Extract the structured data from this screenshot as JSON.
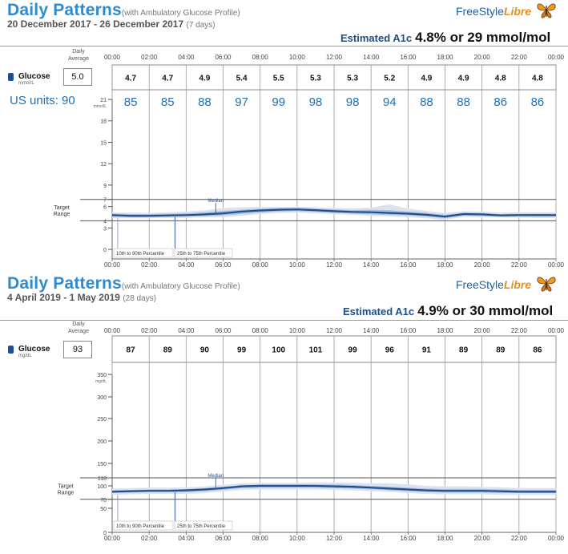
{
  "reports": [
    {
      "title": "Daily Patterns",
      "subtitle": "(with Ambulatory Glucose Profile)",
      "date_range": "20 December 2017 - 26 December 2017",
      "days": "(7 days)",
      "logo": {
        "text1": "FreeStyle",
        "text2": "Libre"
      },
      "a1c_label": "Estimated A1c",
      "a1c_value": "4.8% or 29 mmol/mol",
      "daily_average_label": [
        "Daily",
        "Average"
      ],
      "glucose_label": "Glucose",
      "glucose_unit": "mmol/L",
      "daily_average_value": "5.0",
      "us_units_label": "US units: 90"
    },
    {
      "title": "Daily Patterns",
      "subtitle": "(with Ambulatory Glucose Profile)",
      "date_range": "4 April 2019 - 1 May 2019",
      "days": "(28 days)",
      "logo": {
        "text1": "FreeStyle",
        "text2": "Libre"
      },
      "a1c_label": "Estimated A1c",
      "a1c_value": "4.9% or 30 mmol/mol",
      "daily_average_label": [
        "Daily",
        "Average"
      ],
      "glucose_label": "Glucose",
      "glucose_unit": "mg/dL",
      "daily_average_value": "93"
    }
  ],
  "colors": {
    "title": "#2e8bd0",
    "median": "#1f4f8c",
    "band_outer": "#dbe3f0",
    "band_inner": "#aebfdc",
    "us_units": "#1f6fb5"
  },
  "chart_data": [
    {
      "type": "area",
      "x_ticks": [
        "00:00",
        "02:00",
        "04:00",
        "06:00",
        "08:00",
        "10:00",
        "12:00",
        "14:00",
        "16:00",
        "18:00",
        "20:00",
        "22:00",
        "00:00"
      ],
      "hourly_averages": [
        "4.7",
        "4.7",
        "4.9",
        "5.4",
        "5.5",
        "5.3",
        "5.3",
        "5.2",
        "4.9",
        "4.9",
        "4.8",
        "4.8"
      ],
      "hourly_averages_us": [
        "85",
        "85",
        "88",
        "97",
        "99",
        "98",
        "98",
        "94",
        "88",
        "88",
        "86",
        "86"
      ],
      "y_ticks": [
        0,
        3,
        4,
        6,
        7,
        9,
        12,
        15,
        18,
        21
      ],
      "y_unit": "mmol/L",
      "ylim": [
        0,
        21
      ],
      "target_range": [
        4,
        7
      ],
      "target_label": [
        "Target",
        "Range"
      ],
      "median_label": "Median",
      "legend": [
        "10th to 90th Percentile",
        "25th to 75th Percentile"
      ],
      "x_hours": [
        0,
        1,
        2,
        3,
        4,
        5,
        6,
        7,
        8,
        9,
        10,
        11,
        12,
        13,
        14,
        15,
        16,
        17,
        18,
        19,
        20,
        21,
        22,
        23,
        24
      ],
      "median": [
        4.8,
        4.7,
        4.7,
        4.75,
        4.8,
        4.9,
        5.05,
        5.3,
        5.45,
        5.55,
        5.6,
        5.5,
        5.35,
        5.25,
        5.2,
        5.1,
        5.0,
        4.85,
        4.6,
        4.95,
        4.9,
        4.75,
        4.8,
        4.8,
        4.8
      ],
      "p25": [
        4.55,
        4.5,
        4.5,
        4.55,
        4.6,
        4.65,
        4.75,
        4.95,
        5.15,
        5.3,
        5.35,
        5.25,
        5.1,
        5.0,
        4.9,
        4.8,
        4.75,
        4.6,
        4.35,
        4.75,
        4.7,
        4.6,
        4.6,
        4.6,
        4.6
      ],
      "p75": [
        5.0,
        4.95,
        4.95,
        5.0,
        5.05,
        5.2,
        5.4,
        5.55,
        5.7,
        5.8,
        5.8,
        5.7,
        5.6,
        5.5,
        5.55,
        5.5,
        5.3,
        5.1,
        4.85,
        5.15,
        5.1,
        4.95,
        5.0,
        5.0,
        5.0
      ],
      "p10": [
        4.35,
        4.35,
        4.35,
        4.4,
        4.4,
        4.5,
        4.5,
        4.7,
        4.95,
        5.1,
        5.15,
        5.05,
        4.95,
        4.85,
        4.7,
        4.6,
        4.5,
        4.35,
        4.15,
        4.55,
        4.5,
        4.45,
        4.45,
        4.4,
        4.4
      ],
      "p90": [
        5.2,
        5.15,
        5.1,
        5.2,
        5.3,
        5.45,
        5.8,
        5.9,
        5.95,
        5.95,
        6.0,
        5.9,
        5.8,
        5.75,
        5.85,
        6.3,
        5.7,
        5.4,
        5.1,
        5.35,
        5.3,
        5.15,
        5.2,
        5.2,
        5.2
      ]
    },
    {
      "type": "area",
      "x_ticks": [
        "00:00",
        "02:00",
        "04:00",
        "06:00",
        "08:00",
        "10:00",
        "12:00",
        "14:00",
        "16:00",
        "18:00",
        "20:00",
        "22:00",
        "00:00"
      ],
      "hourly_averages": [
        "87",
        "89",
        "90",
        "99",
        "100",
        "101",
        "99",
        "96",
        "91",
        "89",
        "89",
        "86"
      ],
      "y_ticks": [
        0,
        50,
        70,
        100,
        118,
        150,
        200,
        250,
        300,
        350
      ],
      "y_unit": "mg/dL",
      "ylim": [
        0,
        350
      ],
      "target_range": [
        70,
        118
      ],
      "target_label": [
        "Target",
        "Range"
      ],
      "median_label": "Median",
      "legend": [
        "10th to 90th Percentile",
        "25th to 75th Percentile"
      ],
      "x_hours": [
        0,
        1,
        2,
        3,
        4,
        5,
        6,
        7,
        8,
        9,
        10,
        11,
        12,
        13,
        14,
        15,
        16,
        17,
        18,
        19,
        20,
        21,
        22,
        23,
        24
      ],
      "median": [
        87,
        88,
        89,
        89,
        90,
        92,
        95,
        99,
        100,
        100,
        100,
        100,
        99,
        98,
        96,
        94,
        92,
        90,
        89,
        89,
        89,
        88,
        87,
        87,
        87
      ],
      "p25": [
        84,
        85,
        86,
        86,
        86,
        88,
        91,
        95,
        96,
        96,
        96,
        96,
        95,
        94,
        92,
        90,
        88,
        86,
        85,
        85,
        85,
        84,
        84,
        84,
        84
      ],
      "p75": [
        90,
        91,
        92,
        92,
        93,
        95,
        98,
        102,
        103,
        103,
        103,
        103,
        103,
        102,
        100,
        98,
        96,
        94,
        93,
        93,
        93,
        92,
        91,
        91,
        91
      ],
      "p10": [
        80,
        81,
        82,
        82,
        82,
        84,
        87,
        91,
        92,
        92,
        92,
        92,
        91,
        90,
        88,
        86,
        84,
        82,
        81,
        81,
        81,
        80,
        80,
        80,
        80
      ],
      "p90": [
        94,
        95,
        96,
        96,
        97,
        99,
        102,
        106,
        107,
        107,
        107,
        108,
        108,
        107,
        106,
        106,
        103,
        100,
        99,
        99,
        98,
        97,
        95,
        95,
        95
      ]
    }
  ]
}
